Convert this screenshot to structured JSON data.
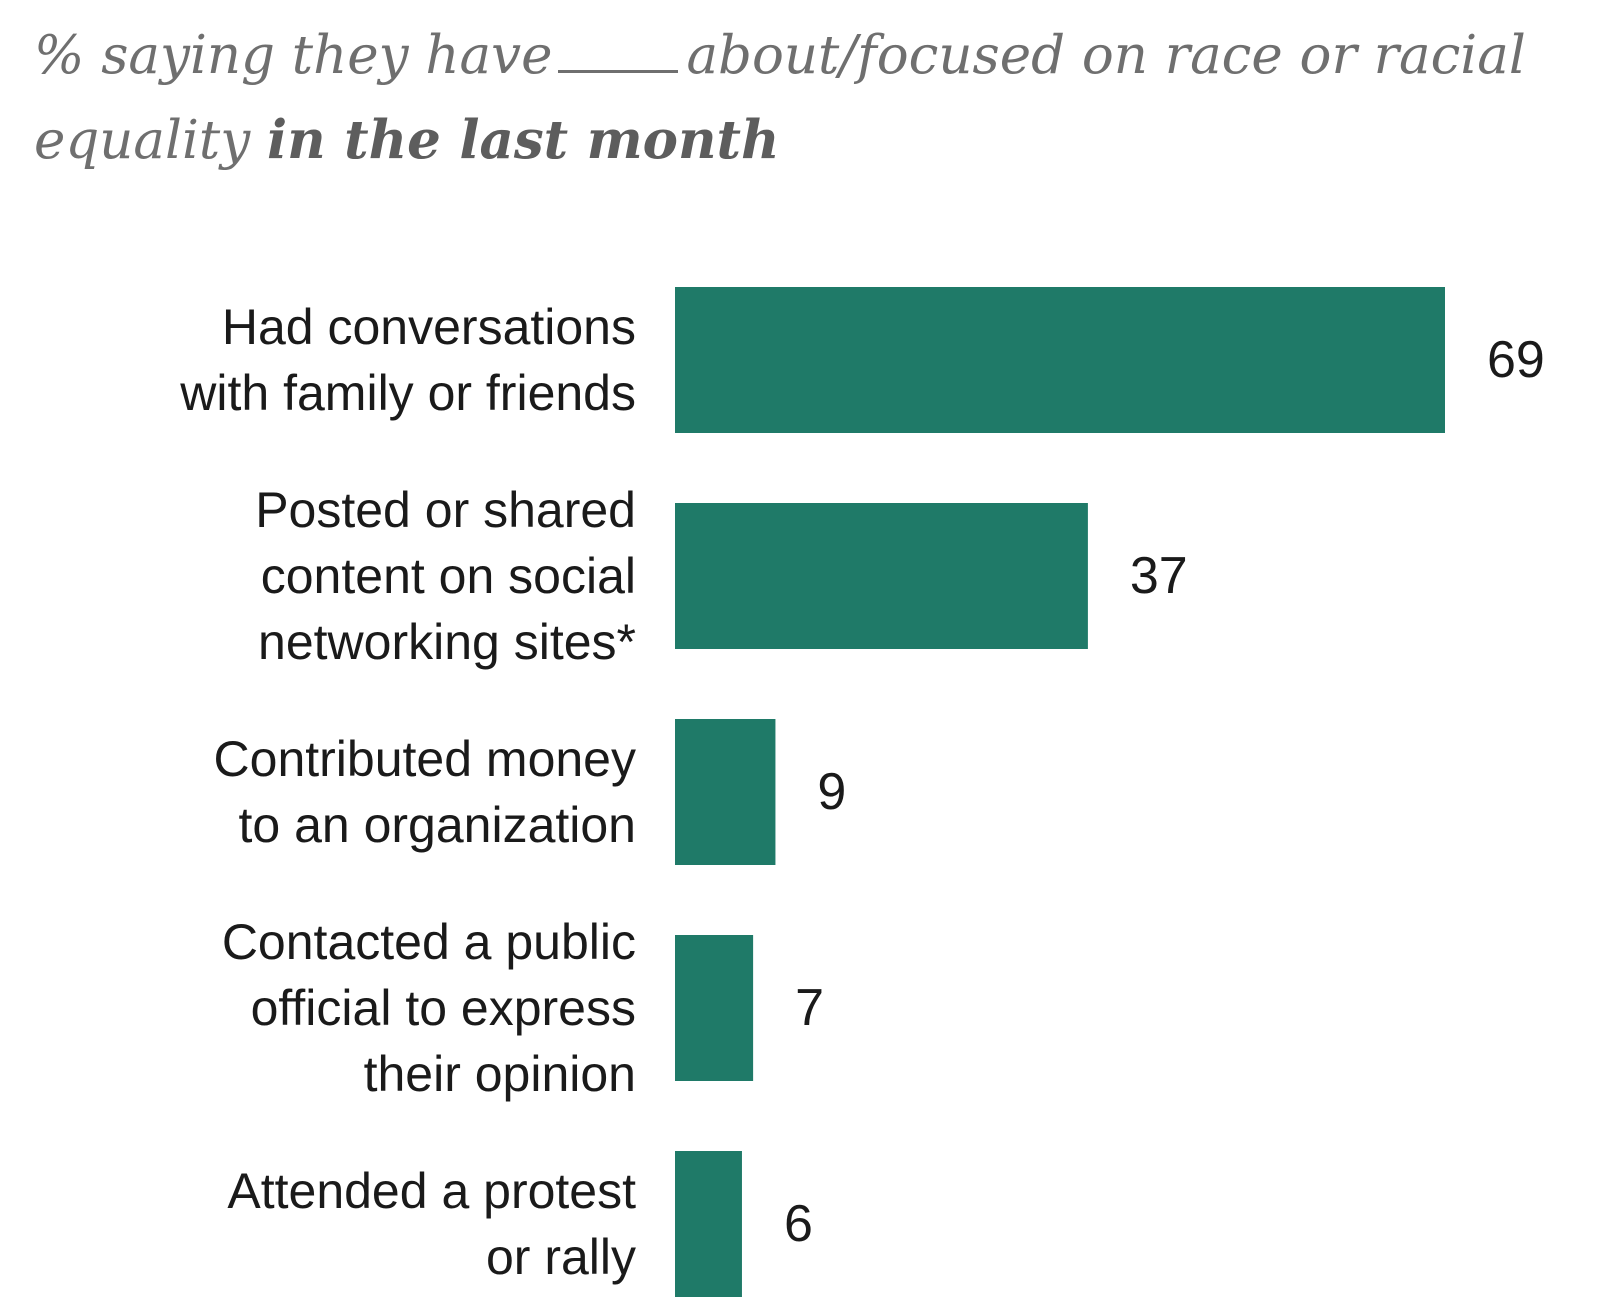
{
  "chart_data": {
    "type": "bar",
    "orientation": "horizontal",
    "subtitle": {
      "before_blank": "% saying they have",
      "after_blank": "about/focused on race or racial equality",
      "emphasis": "in the last month"
    },
    "categories": [
      [
        "Had conversations",
        "with family or friends"
      ],
      [
        "Posted or shared",
        "content on social",
        "networking sites*"
      ],
      [
        "Contributed money",
        "to an organization"
      ],
      [
        "Contacted a public",
        "official to express",
        "their opinion"
      ],
      [
        "Attended a protest",
        "or rally"
      ]
    ],
    "values": [
      69,
      37,
      9,
      7,
      6
    ],
    "value_labels": [
      "69",
      "37",
      "9",
      "7",
      "6"
    ],
    "xlabel": "",
    "ylabel": "",
    "xlim": [
      0,
      69
    ],
    "grid": false,
    "legend": "none",
    "bar_color": "#1f7a68"
  }
}
